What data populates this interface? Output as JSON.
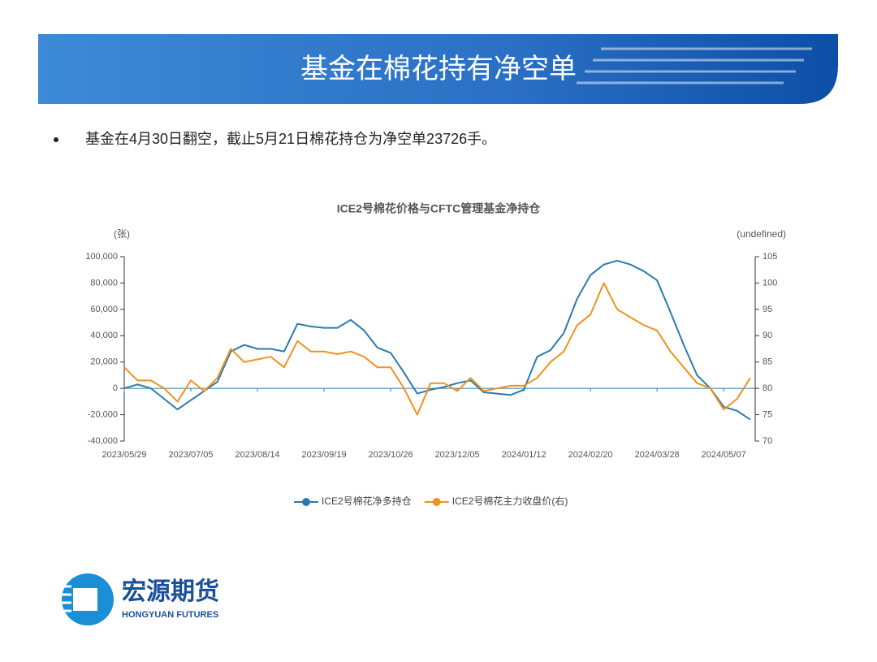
{
  "header": {
    "title": "基金在棉花持有净空单"
  },
  "bullet": "基金在4月30日翻空，截止5月21日棉花持仓为净空单23726手。",
  "logo": {
    "name": "宏源期货",
    "name_en": "HONGYUAN FUTURES"
  },
  "chart_data": {
    "type": "line",
    "title": "ICE2号棉花价格与CFTC管理基金净持仓",
    "ylabel": "(张)",
    "y2label": "(undefined)",
    "x": [
      "2023/05/29",
      null,
      null,
      null,
      null,
      "2023/07/05",
      null,
      null,
      null,
      null,
      "2023/08/14",
      null,
      null,
      null,
      null,
      "2023/09/19",
      null,
      null,
      null,
      null,
      "2023/10/26",
      null,
      null,
      null,
      null,
      "2023/12/05",
      null,
      null,
      null,
      null,
      "2024/01/12",
      null,
      null,
      null,
      null,
      "2024/02/20",
      null,
      null,
      null,
      null,
      "2024/03/28",
      null,
      null,
      null,
      null,
      "2024/05/07",
      null,
      null
    ],
    "series": [
      {
        "name": "ICE2号棉花净多持仓",
        "color": "#2b7bab",
        "axis": "y",
        "values": [
          0,
          3000,
          0,
          -8000,
          -16000,
          -9000,
          -2000,
          5000,
          28000,
          33000,
          30000,
          30000,
          28000,
          49000,
          47000,
          46000,
          46000,
          52000,
          44000,
          31000,
          27000,
          12000,
          -4000,
          -1000,
          1000,
          4000,
          6000,
          -3000,
          -4000,
          -5000,
          -1000,
          24000,
          29000,
          42000,
          68000,
          86000,
          94000,
          97000,
          94000,
          89000,
          82000,
          58000,
          33000,
          10000,
          0,
          -14000,
          -17000,
          -23726
        ]
      },
      {
        "name": "ICE2号棉花主力收盘价(右)",
        "color": "#f0921f",
        "axis": "y2",
        "values": [
          84,
          81.5,
          81.5,
          80,
          77.5,
          81.5,
          79.5,
          82,
          87.5,
          85,
          85.5,
          86,
          84,
          89,
          87,
          87,
          86.5,
          87,
          86,
          84,
          84,
          80,
          75,
          81,
          81,
          79.5,
          82,
          79.5,
          80,
          80.5,
          80.5,
          82,
          85,
          87,
          92,
          94,
          100,
          95,
          93.5,
          92,
          91,
          87,
          84,
          81,
          80,
          76,
          78,
          82
        ]
      }
    ],
    "ylim": [
      -40000,
      100000
    ],
    "yticks": [
      {
        "value": -40000,
        "label": "-40,000"
      },
      {
        "value": -20000,
        "label": "-20,000"
      },
      0,
      {
        "value": 20000,
        "label": "20,000"
      },
      {
        "value": 40000,
        "label": "40,000"
      },
      {
        "value": 60000,
        "label": "60,000"
      },
      {
        "value": 80000,
        "label": "80,000"
      },
      {
        "value": 100000,
        "label": "100,000"
      }
    ],
    "y2lim": [
      70,
      105
    ],
    "y2ticks": [
      70,
      75,
      80,
      85,
      90,
      95,
      100,
      105
    ],
    "legend": "bottom"
  }
}
